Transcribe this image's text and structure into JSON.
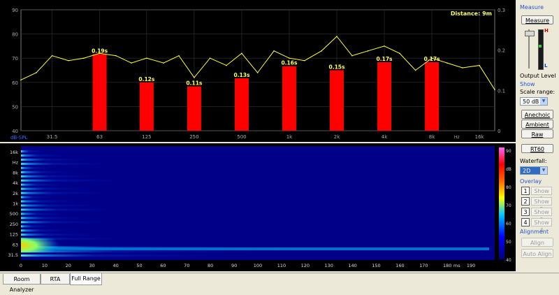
{
  "top_chart": {
    "distance_label": "Distance: 9m",
    "y_left_ticks": [
      "90",
      "80",
      "70",
      "60",
      "50",
      "40"
    ],
    "y_left_unit": "dB-SPL",
    "y_right_ticks": [
      "0.3",
      "0.2",
      "0.1",
      "0"
    ],
    "x_ticks": [
      "31.5",
      "63",
      "125",
      "250",
      "500",
      "1k",
      "2k",
      "4k",
      "8k",
      "16k"
    ],
    "x_unit": "Hz",
    "colors": {
      "bars": "#ff0000",
      "curve": "#ffff33",
      "bar_labels": "#ffff66"
    }
  },
  "chart_data": [
    {
      "type": "bar",
      "categories": [
        "63",
        "125",
        "250",
        "500",
        "1k",
        "2k",
        "4k",
        "8k"
      ],
      "values": [
        0.19,
        0.12,
        0.11,
        0.13,
        0.16,
        0.15,
        0.17,
        0.17
      ],
      "labels": [
        "0.19s",
        "0.12s",
        "0.11s",
        "0.13s",
        "0.16s",
        "0.15s",
        "0.17s",
        "0.17s"
      ],
      "xlabel": "Hz",
      "ylim": [
        0,
        0.3
      ]
    },
    {
      "type": "line",
      "x": [
        20,
        25,
        31.5,
        40,
        50,
        63,
        80,
        100,
        125,
        160,
        200,
        250,
        315,
        400,
        500,
        630,
        800,
        1000,
        1250,
        1600,
        2000,
        2500,
        3150,
        4000,
        5000,
        6300,
        8000,
        10000,
        12500,
        16000,
        20000
      ],
      "y": [
        61,
        64,
        71,
        69,
        70,
        72,
        71,
        68,
        70,
        68,
        71,
        62,
        70,
        67,
        72,
        64,
        73,
        70,
        69,
        73,
        79,
        71,
        73,
        75,
        72,
        65,
        70,
        68,
        66,
        67,
        57
      ],
      "ylabel": "dB-SPL",
      "ylim": [
        40,
        90
      ],
      "xscale": "log"
    },
    {
      "type": "heatmap",
      "y_ticks": [
        "16k",
        "Hz",
        "8k",
        "4k",
        "2k",
        "1k",
        "500",
        "250",
        "125",
        "63",
        "31.5"
      ],
      "x_ticks": [
        "0",
        "10",
        "20",
        "30",
        "40",
        "50",
        "60",
        "70",
        "80",
        "90",
        "100",
        "110",
        "120",
        "130",
        "140",
        "150",
        "160",
        "170",
        "180",
        "190"
      ],
      "x_unit": "ms",
      "colorbar_ticks": [
        "90",
        "dB",
        "80",
        "70",
        "60",
        "50",
        "40"
      ],
      "colorbar_range": [
        40,
        90
      ]
    }
  ],
  "sidebar": {
    "measure_title": "Measure",
    "measure_button": "Measure",
    "output_level_label": "Output Level",
    "meter_labels": {
      "high": "H",
      "low": "L"
    },
    "show_title": "Show",
    "scale_range_label": "Scale range:",
    "scale_range_value": "50 dB",
    "anechoic_button": "Anechoic",
    "ambient_button": "Ambient",
    "raw_button": "Raw",
    "rt60_button": "RT60",
    "waterfall_label": "Waterfall:",
    "waterfall_value": "2D",
    "overlay_title": "Overlay",
    "overlays": [
      {
        "num": "1",
        "label": "Show 1"
      },
      {
        "num": "2",
        "label": "Show 2"
      },
      {
        "num": "3",
        "label": "Show 3"
      },
      {
        "num": "4",
        "label": "Show 4"
      }
    ],
    "alignment_title": "Alignment",
    "align_delay_button": "Align Delay",
    "auto_align_button": "Auto Align"
  },
  "tabs": [
    {
      "label": "Room Analyzer",
      "active": false
    },
    {
      "label": "RTA",
      "active": false
    },
    {
      "label": "Full Range",
      "active": true
    }
  ]
}
